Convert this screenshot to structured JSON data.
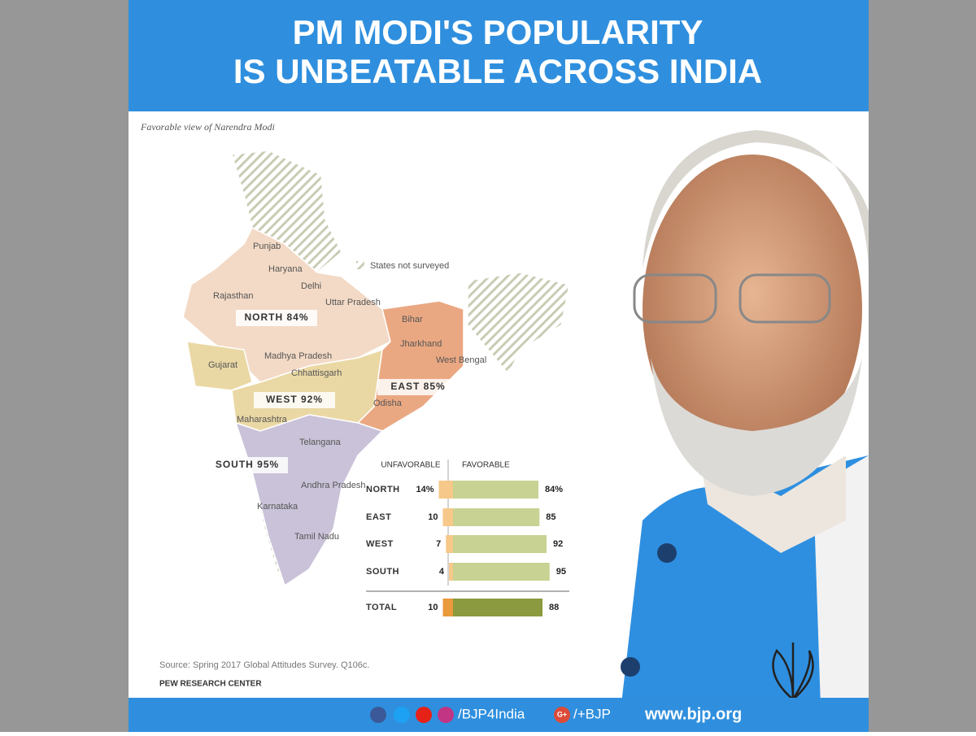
{
  "header": {
    "title_lines": [
      "PM MODI'S POPULARITY",
      "IS UNBEATABLE ACROSS INDIA"
    ]
  },
  "map": {
    "subtitle": "Favorable view of Narendra Modi",
    "legend": "States not surveyed",
    "states": [
      "Punjab",
      "Haryana",
      "Delhi",
      "Uttar Pradesh",
      "Rajasthan",
      "Madhya Pradesh",
      "Gujarat",
      "Chhattisgarh",
      "Bihar",
      "Jharkhand",
      "West Bengal",
      "Odisha",
      "Maharashtra",
      "Telangana",
      "Andhra Pradesh",
      "Karnataka",
      "Tamil Nadu"
    ],
    "regions": [
      "NORTH 84%",
      "EAST 85%",
      "WEST 92%",
      "SOUTH 95%"
    ]
  },
  "chart_data": {
    "type": "diverging-bar",
    "categories": [
      "NORTH",
      "EAST",
      "WEST",
      "SOUTH",
      "TOTAL"
    ],
    "series": [
      {
        "name": "UNFAVORABLE",
        "color": "#f6c88a",
        "total_color": "#e99a3a",
        "values": [
          14,
          10,
          7,
          4,
          10
        ],
        "value_labels": [
          "14%",
          "10",
          "7",
          "4",
          "10"
        ]
      },
      {
        "name": "FAVORABLE",
        "color": "#c8d292",
        "total_color": "#8b9a3e",
        "values": [
          84,
          85,
          92,
          95,
          88
        ],
        "value_labels": [
          "84%",
          "85",
          "92",
          "95",
          "88"
        ]
      }
    ]
  },
  "source": "Source: Spring 2017 Global Attitudes Survey. Q106c.",
  "credit": "PEW RESEARCH CENTER",
  "footer": {
    "social": "/BJP4India",
    "gplus": "G+",
    "gplus_handle": "/+BJP",
    "website": "www.bjp.org"
  }
}
